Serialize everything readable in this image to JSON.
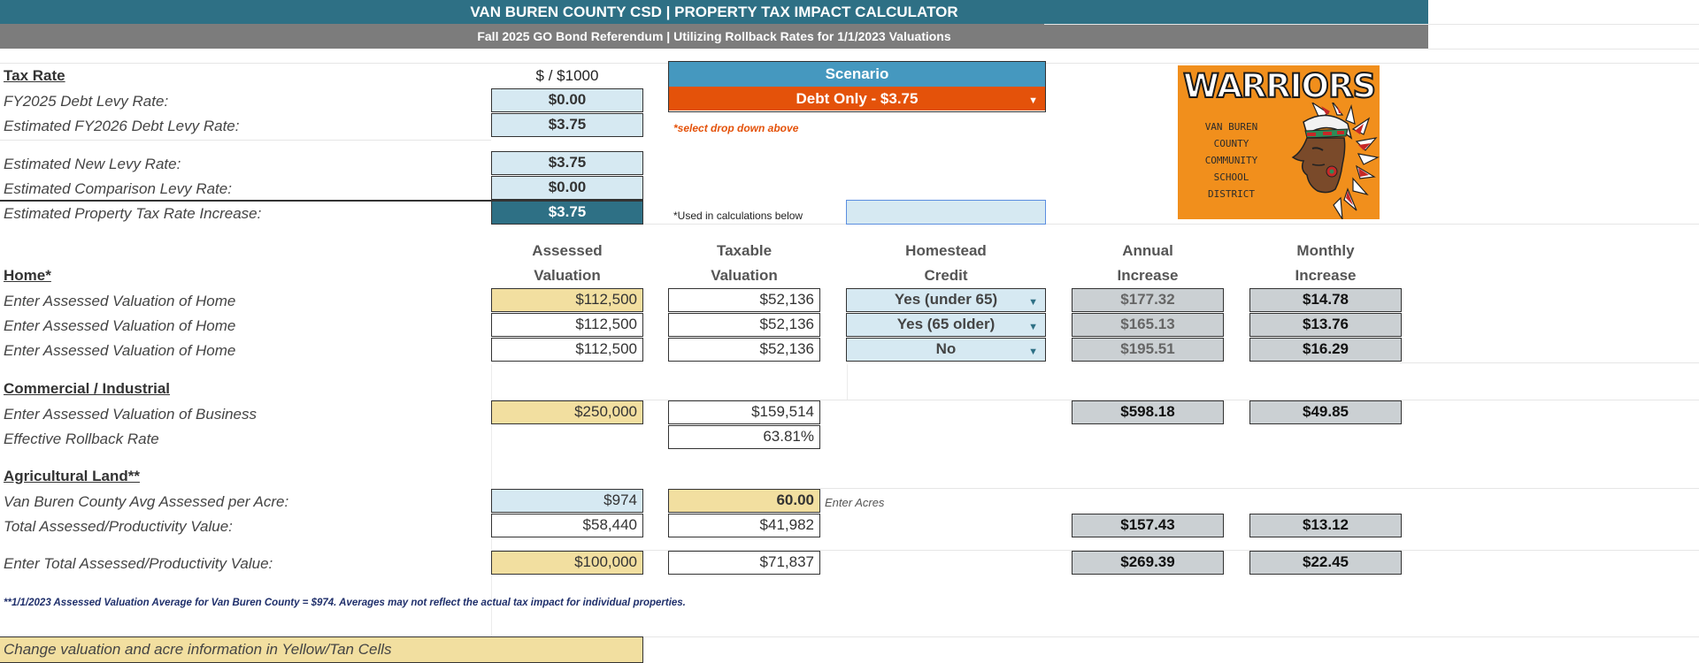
{
  "header": {
    "title": "VAN BUREN COUNTY CSD | PROPERTY TAX IMPACT CALCULATOR",
    "subtitle": "Fall 2025 GO Bond Referendum | Utilizing Rollback Rates for 1/1/2023 Valuations"
  },
  "tax_rate": {
    "section_label": "Tax Rate",
    "unit_header": "$ / $1000",
    "rows": [
      {
        "label": "FY2025 Debt Levy Rate:",
        "value": "$0.00"
      },
      {
        "label": "Estimated FY2026 Debt Levy Rate:",
        "value": "$3.75"
      },
      {
        "label": "Estimated New Levy Rate:",
        "value": "$3.75"
      },
      {
        "label": "Estimated Comparison Levy Rate:",
        "value": "$0.00"
      },
      {
        "label": "Estimated Property Tax Rate Increase:",
        "value": "$3.75"
      }
    ],
    "used_note": "*Used in calculations below"
  },
  "scenario": {
    "header": "Scenario",
    "selected": "Debt Only - $3.75",
    "hint": "*select drop down above"
  },
  "logo": {
    "wordmark": "WARRIORS",
    "lines": [
      "VAN BUREN",
      "COUNTY",
      "COMMUNITY",
      "SCHOOL",
      "DISTRICT"
    ]
  },
  "columns": {
    "assessed": [
      "Assessed",
      "Valuation"
    ],
    "taxable": [
      "Taxable",
      "Valuation"
    ],
    "homestead": [
      "Homestead",
      "Credit"
    ],
    "annual": [
      "Annual",
      "Increase"
    ],
    "monthly": [
      "Monthly",
      "Increase"
    ]
  },
  "home": {
    "section_label": "Home*",
    "rows": [
      {
        "label": "Enter Assessed Valuation of Home",
        "assessed": "$112,500",
        "taxable": "$52,136",
        "credit": "Yes (under 65)",
        "annual": "$177.32",
        "monthly": "$14.78"
      },
      {
        "label": "Enter Assessed Valuation of Home",
        "assessed": "$112,500",
        "taxable": "$52,136",
        "credit": "Yes (65 older)",
        "annual": "$165.13",
        "monthly": "$13.76"
      },
      {
        "label": "Enter Assessed Valuation of Home",
        "assessed": "$112,500",
        "taxable": "$52,136",
        "credit": "No",
        "annual": "$195.51",
        "monthly": "$16.29"
      }
    ]
  },
  "commercial": {
    "section_label": "Commercial / Industrial",
    "business_label": "Enter Assessed Valuation of Business",
    "assessed": "$250,000",
    "taxable": "$159,514",
    "annual": "$598.18",
    "monthly": "$49.85",
    "rollback_label": "Effective Rollback Rate",
    "rollback_value": "63.81%"
  },
  "ag": {
    "section_label": "Agricultural Land**",
    "avg_label": "Van Buren County Avg Assessed per Acre:",
    "avg_value": "$974",
    "acres_value": "60.00",
    "acres_hint": "Enter Acres",
    "total_label": "Total Assessed/Productivity Value:",
    "total_assessed": "$58,440",
    "total_taxable": "$41,982",
    "total_annual": "$157.43",
    "total_monthly": "$13.12",
    "enter_label": "Enter Total Assessed/Productivity Value:",
    "enter_assessed": "$100,000",
    "enter_taxable": "$71,837",
    "enter_annual": "$269.39",
    "enter_monthly": "$22.45"
  },
  "footnote": "**1/1/2023 Assessed Valuation Average for Van Buren County = $974. Averages may not reflect the actual tax impact for individual properties.",
  "instruction": "Change valuation and acre information in Yellow/Tan Cells",
  "colors": {
    "teal": "#2e7085",
    "orange": "#e4520a",
    "scenario_blue": "#4598bf",
    "tan": "#f2dfa0",
    "light_blue": "#d6e9f2",
    "gray": "#cbd0d3"
  }
}
